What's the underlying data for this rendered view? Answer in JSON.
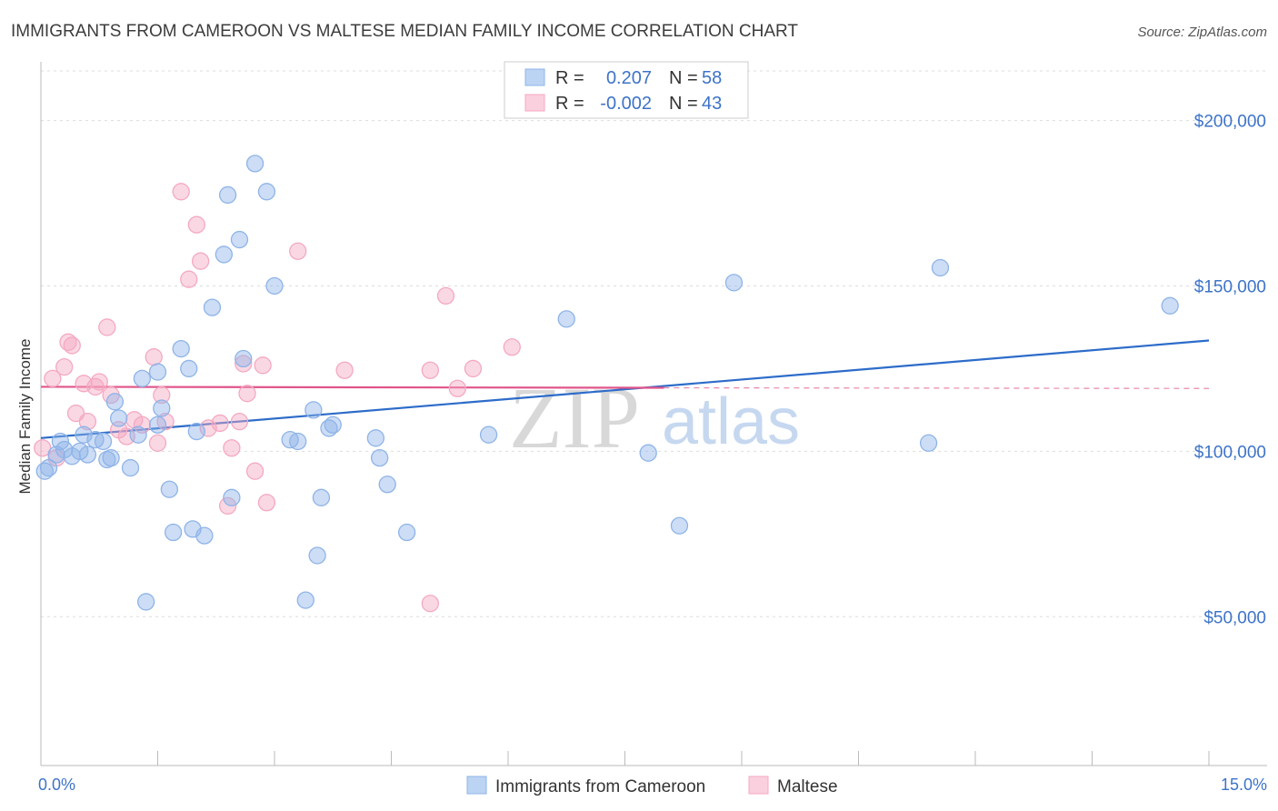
{
  "chart_data": {
    "type": "scatter",
    "title": "IMMIGRANTS FROM CAMEROON VS MALTESE MEDIAN FAMILY INCOME CORRELATION CHART",
    "source": "Source: ZipAtlas.com",
    "ylabel": "Median Family Income",
    "xlim": [
      0,
      15
    ],
    "ylim": [
      5000,
      215000
    ],
    "x_tick_labels": {
      "min": "0.0%",
      "max": "15.0%"
    },
    "y_ticks": [
      {
        "value": 50000,
        "label": "$50,000"
      },
      {
        "value": 100000,
        "label": "$100,000"
      },
      {
        "value": 150000,
        "label": "$150,000"
      },
      {
        "value": 200000,
        "label": "$200,000"
      }
    ],
    "watermark": {
      "zip": "ZIP",
      "atlas": "atlas"
    },
    "legend": {
      "r_label": "R =",
      "n_label": "N =",
      "entries": [
        {
          "r": "0.207",
          "n": "58"
        },
        {
          "r": "-0.002",
          "n": "43"
        }
      ]
    },
    "series": [
      {
        "name": "Immigrants from Cameroon",
        "color": "#8fb4e8",
        "line_color": "#2d6cc9",
        "trend": {
          "x0": 0,
          "y0": 104000,
          "x1": 15,
          "y1": 133500
        },
        "points": [
          [
            0.05,
            94000
          ],
          [
            0.1,
            95000
          ],
          [
            0.2,
            99000
          ],
          [
            0.25,
            103000
          ],
          [
            0.3,
            100500
          ],
          [
            0.4,
            98500
          ],
          [
            0.5,
            100000
          ],
          [
            0.55,
            105000
          ],
          [
            0.6,
            99000
          ],
          [
            0.7,
            103500
          ],
          [
            0.8,
            103000
          ],
          [
            0.85,
            97500
          ],
          [
            0.9,
            98000
          ],
          [
            0.95,
            115000
          ],
          [
            1.0,
            110000
          ],
          [
            1.15,
            95000
          ],
          [
            1.25,
            105000
          ],
          [
            1.3,
            122000
          ],
          [
            1.35,
            54500
          ],
          [
            1.5,
            108000
          ],
          [
            1.5,
            124000
          ],
          [
            1.55,
            113000
          ],
          [
            1.65,
            88500
          ],
          [
            1.7,
            75500
          ],
          [
            1.8,
            131000
          ],
          [
            1.9,
            125000
          ],
          [
            1.95,
            76500
          ],
          [
            2.0,
            106000
          ],
          [
            2.1,
            74500
          ],
          [
            2.2,
            143500
          ],
          [
            2.35,
            159500
          ],
          [
            2.4,
            177500
          ],
          [
            2.45,
            86000
          ],
          [
            2.55,
            164000
          ],
          [
            2.6,
            128000
          ],
          [
            2.75,
            187000
          ],
          [
            2.9,
            178500
          ],
          [
            3.0,
            150000
          ],
          [
            3.2,
            103500
          ],
          [
            3.3,
            103000
          ],
          [
            3.4,
            55000
          ],
          [
            3.5,
            112500
          ],
          [
            3.55,
            68500
          ],
          [
            3.6,
            86000
          ],
          [
            3.7,
            107000
          ],
          [
            3.75,
            108000
          ],
          [
            4.3,
            104000
          ],
          [
            4.35,
            98000
          ],
          [
            4.45,
            90000
          ],
          [
            4.7,
            75500
          ],
          [
            5.75,
            105000
          ],
          [
            6.75,
            140000
          ],
          [
            7.8,
            99500
          ],
          [
            8.2,
            77500
          ],
          [
            8.9,
            151000
          ],
          [
            11.4,
            102500
          ],
          [
            11.55,
            155500
          ],
          [
            14.5,
            144000
          ]
        ]
      },
      {
        "name": "Maltese",
        "color": "#f4a9c2",
        "line_color": "#e0558a",
        "trend": {
          "x0": 0,
          "y0": 119500,
          "x1": 8.0,
          "y1": 119200
        },
        "trend_dash": {
          "x0": 8.0,
          "y0": 119200,
          "x1": 15,
          "y1": 119000
        },
        "points": [
          [
            0.02,
            101000
          ],
          [
            0.15,
            122000
          ],
          [
            0.2,
            98000
          ],
          [
            0.3,
            125500
          ],
          [
            0.35,
            133000
          ],
          [
            0.4,
            132000
          ],
          [
            0.45,
            111500
          ],
          [
            0.55,
            120500
          ],
          [
            0.6,
            109000
          ],
          [
            0.7,
            119500
          ],
          [
            0.75,
            121000
          ],
          [
            0.85,
            137500
          ],
          [
            0.9,
            117000
          ],
          [
            1.0,
            106500
          ],
          [
            1.1,
            104500
          ],
          [
            1.2,
            109500
          ],
          [
            1.3,
            108000
          ],
          [
            1.45,
            128500
          ],
          [
            1.5,
            102500
          ],
          [
            1.55,
            117000
          ],
          [
            1.6,
            109000
          ],
          [
            1.8,
            178500
          ],
          [
            1.9,
            152000
          ],
          [
            2.0,
            168500
          ],
          [
            2.05,
            157500
          ],
          [
            2.15,
            107000
          ],
          [
            2.3,
            108500
          ],
          [
            2.4,
            83500
          ],
          [
            2.45,
            101000
          ],
          [
            2.55,
            109000
          ],
          [
            2.6,
            126500
          ],
          [
            2.65,
            117500
          ],
          [
            2.75,
            94000
          ],
          [
            2.85,
            126000
          ],
          [
            2.9,
            84500
          ],
          [
            3.3,
            160500
          ],
          [
            3.9,
            124500
          ],
          [
            5.0,
            54000
          ],
          [
            5.0,
            124500
          ],
          [
            5.2,
            147000
          ],
          [
            5.35,
            119000
          ],
          [
            5.55,
            125000
          ],
          [
            6.05,
            131500
          ]
        ]
      }
    ]
  }
}
